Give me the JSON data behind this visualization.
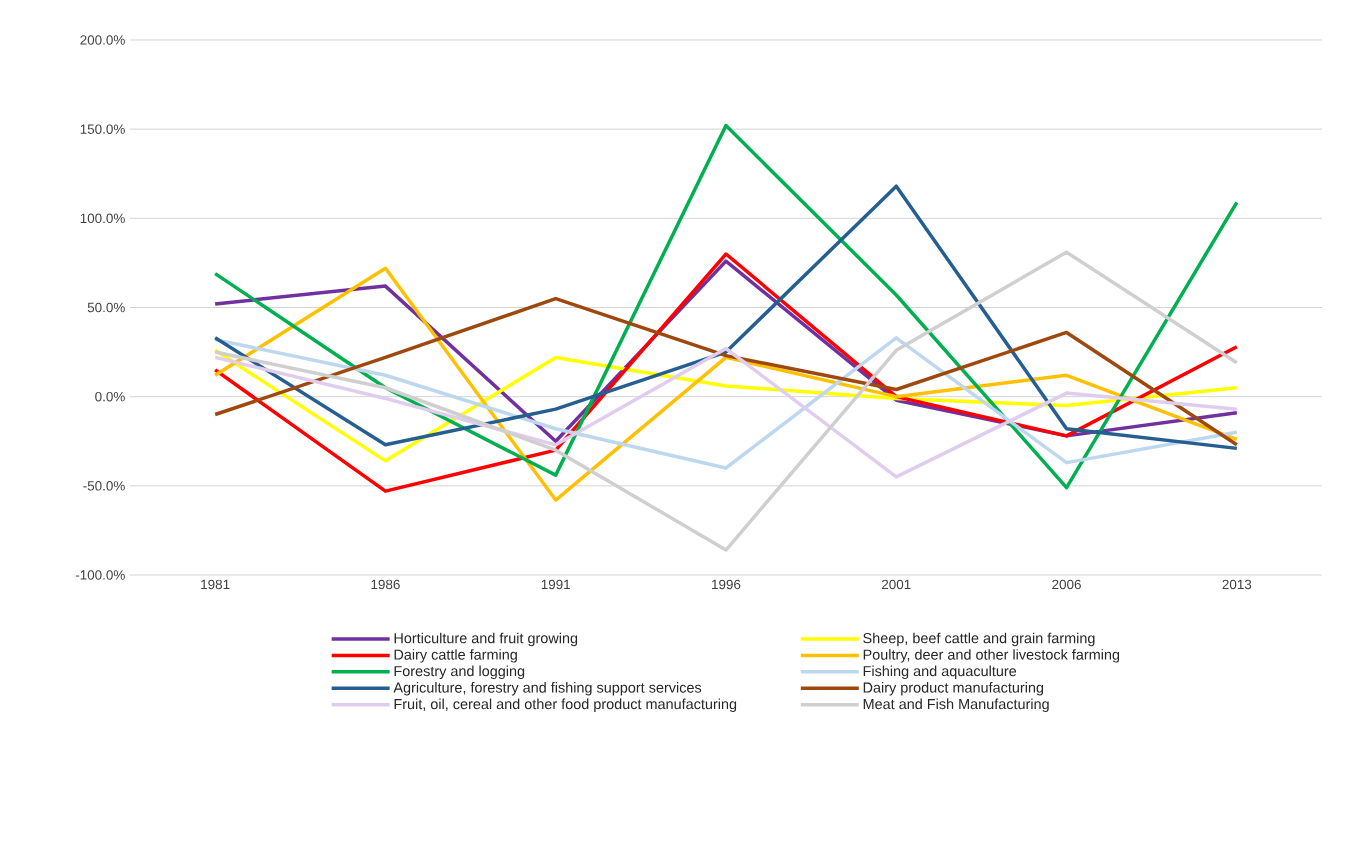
{
  "chart_data": {
    "type": "line",
    "categories": [
      "1981",
      "1986",
      "1991",
      "1996",
      "2001",
      "2006",
      "2013"
    ],
    "series": [
      {
        "name": "Horticulture and fruit growing",
        "color": "#7030a0",
        "values": [
          52,
          62,
          -25,
          76,
          -2,
          -22,
          -9
        ]
      },
      {
        "name": "Sheep, beef cattle and grain farming",
        "color": "#ffff00",
        "values": [
          26,
          -36,
          22,
          6,
          -1,
          -5,
          5
        ]
      },
      {
        "name": "Dairy cattle farming",
        "color": "#ff0000",
        "values": [
          15,
          -53,
          -30,
          80,
          0,
          -22,
          28
        ]
      },
      {
        "name": "Poultry, deer and other livestock farming",
        "color": "#ffc000",
        "values": [
          12,
          72,
          -58,
          22,
          0,
          12,
          -24
        ]
      },
      {
        "name": "Forestry and logging",
        "color": "#00b050",
        "values": [
          69,
          5,
          -44,
          152,
          57,
          -51,
          109
        ]
      },
      {
        "name": "Fishing and aquaculture",
        "color": "#bdd7ee",
        "values": [
          32,
          12,
          -18,
          -40,
          33,
          -37,
          -20
        ]
      },
      {
        "name": "Agriculture, forestry and fishing support services",
        "color": "#255e91",
        "values": [
          33,
          -27,
          -7,
          25,
          118,
          -18,
          -29
        ]
      },
      {
        "name": "Dairy product manufacturing",
        "color": "#9e480e",
        "values": [
          -10,
          22,
          55,
          23,
          4,
          36,
          -27
        ]
      },
      {
        "name": "Fruit, oil, cereal and other food product manufacturing",
        "color": "#e0cdee",
        "values": [
          22,
          -1,
          -27,
          27,
          -45,
          2,
          -7
        ]
      },
      {
        "name": "Meat and Fish Manufacturing",
        "color": "#d0cece",
        "values": [
          25,
          5,
          -30,
          -86,
          26,
          81,
          19
        ]
      }
    ],
    "ylim": [
      -100,
      200
    ],
    "yticks": [
      {
        "value": -100,
        "label": "-100.0%"
      },
      {
        "value": -50,
        "label": "-50.0%"
      },
      {
        "value": 0,
        "label": "0.0%"
      },
      {
        "value": 50,
        "label": "50.0%"
      },
      {
        "value": 100,
        "label": "100.0%"
      },
      {
        "value": 150,
        "label": "150.0%"
      },
      {
        "value": 200,
        "label": "200.0%"
      }
    ],
    "grid": "y",
    "legend": "bottom",
    "marker": "none",
    "line_style": "solid"
  }
}
